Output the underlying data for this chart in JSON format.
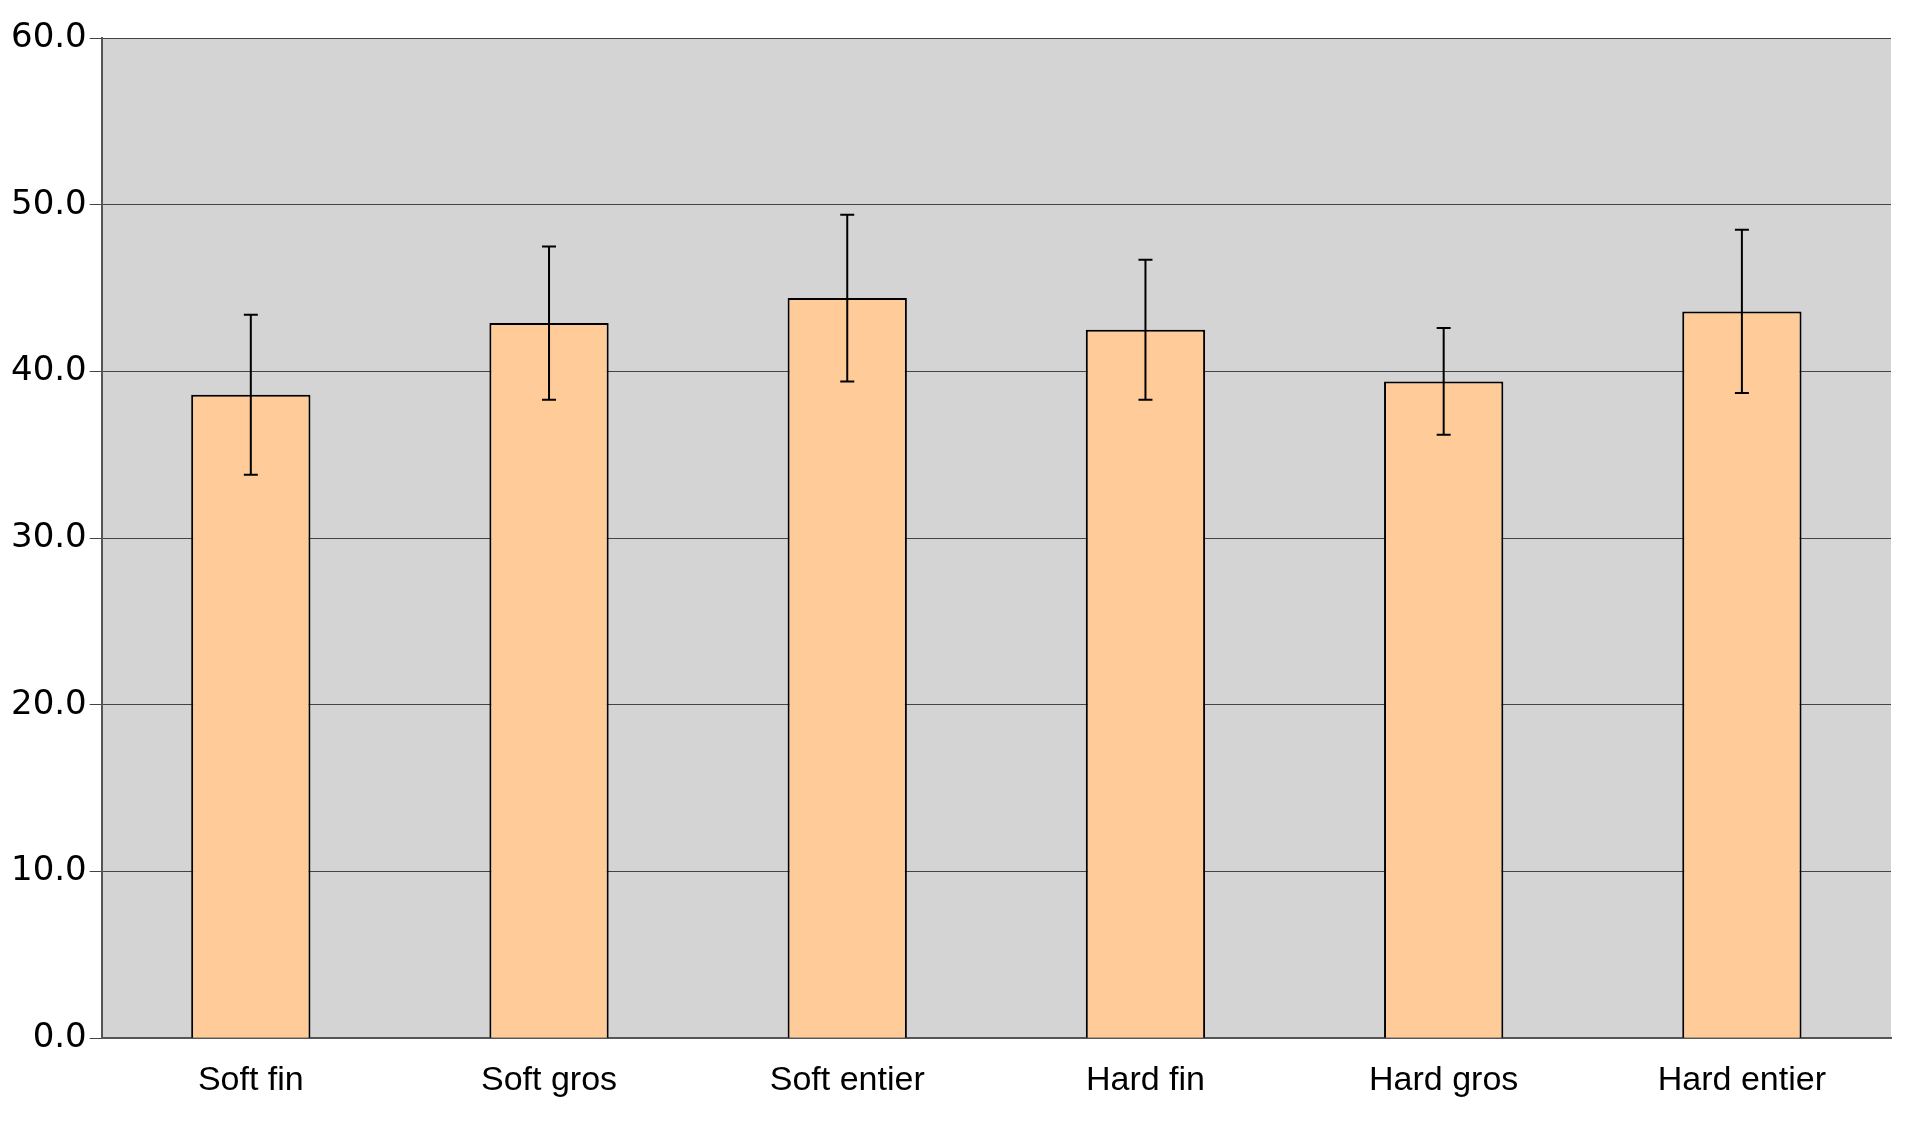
{
  "chart_data": {
    "type": "bar",
    "categories": [
      "Soft fin",
      "Soft gros",
      "Soft entier",
      "Hard fin",
      "Hard gros",
      "Hard entier"
    ],
    "values": [
      38.6,
      42.9,
      44.4,
      42.5,
      39.4,
      43.6
    ],
    "errors": [
      4.8,
      4.6,
      5.0,
      4.2,
      3.2,
      4.9
    ],
    "color": "#ffcc99",
    "ylim": [
      0,
      60
    ],
    "yticks": [
      {
        "value": 0,
        "label": "0.0"
      },
      {
        "value": 10,
        "label": "10.0"
      },
      {
        "value": 20,
        "label": "20.0"
      },
      {
        "value": 30,
        "label": "30.0"
      },
      {
        "value": 40,
        "label": "40.0"
      },
      {
        "value": 50,
        "label": "50.0"
      },
      {
        "value": 60,
        "label": "60.0"
      }
    ],
    "grid": "y",
    "legend": false
  }
}
